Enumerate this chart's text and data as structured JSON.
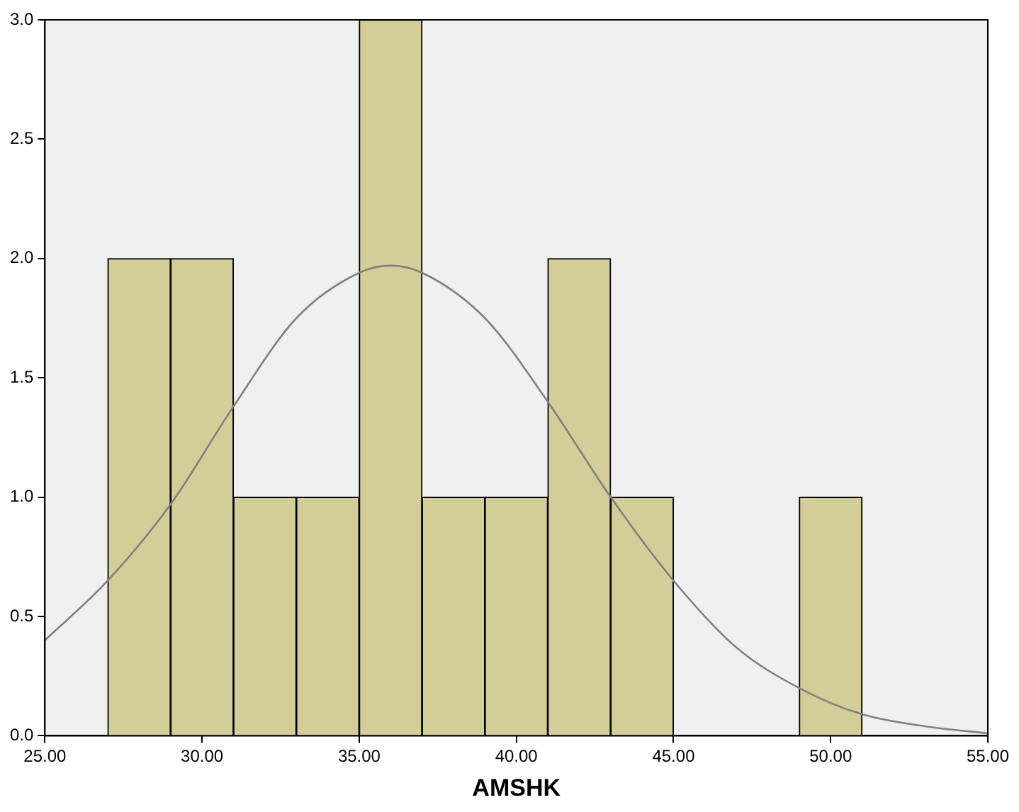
{
  "chart_data": {
    "type": "histogram",
    "xlabel": "AMSHK",
    "bins": [
      27,
      29,
      31,
      33,
      35,
      37,
      39,
      41,
      43,
      45,
      47,
      49,
      51
    ],
    "values": [
      2,
      2,
      1,
      1,
      3,
      1,
      1,
      2,
      1,
      0,
      0,
      1
    ],
    "color": "#d3ce97",
    "series": [
      {
        "type": "line",
        "color": "#808080",
        "x": [
          25,
          27,
          29,
          31,
          33,
          35,
          36,
          37,
          39,
          41,
          43,
          45,
          47,
          49,
          51,
          53,
          55
        ],
        "values": [
          0.4,
          0.65,
          0.97,
          1.38,
          1.75,
          1.94,
          1.97,
          1.94,
          1.75,
          1.4,
          1.0,
          0.65,
          0.37,
          0.2,
          0.09,
          0.04,
          0.01
        ]
      }
    ],
    "xlim": [
      25,
      55
    ],
    "xticks": [
      {
        "value": 25,
        "label": "25.00"
      },
      {
        "value": 30,
        "label": "30.00"
      },
      {
        "value": 35,
        "label": "35.00"
      },
      {
        "value": 40,
        "label": "40.00"
      },
      {
        "value": 45,
        "label": "45.00"
      },
      {
        "value": 50,
        "label": "50.00"
      },
      {
        "value": 55,
        "label": "55.00"
      }
    ],
    "ylim": [
      0,
      3
    ],
    "yticks": [
      {
        "value": 0,
        "label": "0.0"
      },
      {
        "value": 0.5,
        "label": "0.5"
      },
      {
        "value": 1,
        "label": "1.0"
      },
      {
        "value": 1.5,
        "label": "1.5"
      },
      {
        "value": 2,
        "label": "2.0"
      },
      {
        "value": 2.5,
        "label": "2.5"
      },
      {
        "value": 3,
        "label": "3.0"
      }
    ],
    "grid": false,
    "legend": false,
    "marker": "none"
  }
}
